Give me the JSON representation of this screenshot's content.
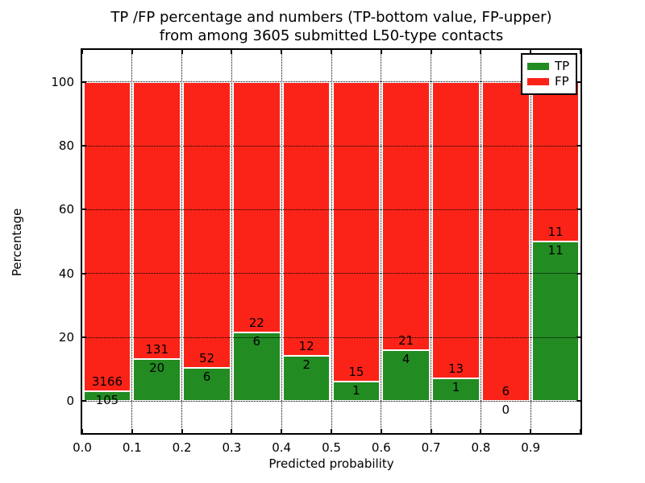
{
  "title": {
    "line1": "TP /FP percentage and numbers (TP-bottom value, FP-upper)",
    "line2": "from among 3605 submitted L50-type contacts"
  },
  "axes": {
    "xlabel": "Predicted probability",
    "ylabel": "Percentage",
    "x_ticks": [
      "0.0",
      "0.1",
      "0.2",
      "0.3",
      "0.4",
      "0.5",
      "0.6",
      "0.7",
      "0.8",
      "0.9"
    ],
    "y_ticks": [
      "0",
      "20",
      "40",
      "60",
      "80",
      "100"
    ]
  },
  "legend": {
    "items": [
      {
        "label": "TP",
        "color": "#228b22"
      },
      {
        "label": "FP",
        "color": "#fb2318"
      }
    ]
  },
  "chart_data": {
    "type": "bar",
    "stacked": true,
    "title": "TP /FP percentage and numbers (TP-bottom value, FP-upper) from among 3605 submitted L50-type contacts",
    "xlabel": "Predicted probability",
    "ylabel": "Percentage",
    "xlim": [
      0.0,
      1.0
    ],
    "ylim": [
      -10,
      110
    ],
    "grid": "dotted-black",
    "legend_position": "upper right",
    "total_contacts": 3605,
    "bin_width": 0.1,
    "bin_starts": [
      0.0,
      0.1,
      0.2,
      0.3,
      0.4,
      0.5,
      0.6,
      0.7,
      0.8,
      0.9
    ],
    "series": [
      {
        "name": "TP",
        "color": "#228b22",
        "counts": [
          105,
          20,
          6,
          6,
          2,
          1,
          4,
          1,
          0,
          11
        ]
      },
      {
        "name": "FP",
        "color": "#fb2318",
        "counts": [
          3166,
          131,
          52,
          22,
          12,
          15,
          21,
          13,
          6,
          11
        ]
      }
    ],
    "tp_percent": [
      3.2,
      13.2,
      10.3,
      21.4,
      14.3,
      6.2,
      16.0,
      7.1,
      0.0,
      50.0
    ],
    "note": "Green TP bar height = TP/(TP+FP)*100; red FP fills remainder to 100%. Count labels straddle the TP/FP boundary (FP above, TP below)."
  }
}
